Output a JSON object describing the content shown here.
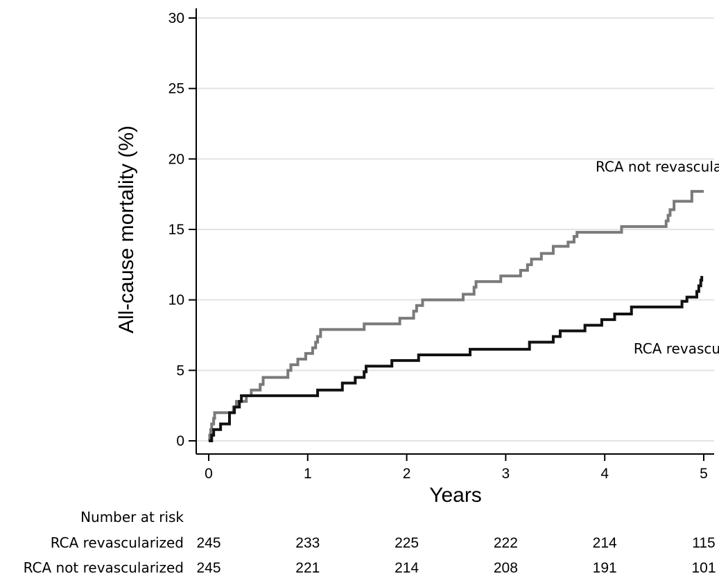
{
  "chart_data": {
    "type": "line",
    "title": "",
    "xlabel": "Years",
    "ylabel": "All-cause mortality (%)",
    "xlim": [
      0,
      5
    ],
    "ylim": [
      0,
      30
    ],
    "x_ticks": [
      "0",
      "1",
      "2",
      "3",
      "4",
      "5"
    ],
    "y_ticks": [
      "0",
      "5",
      "10",
      "15",
      "20",
      "25",
      "30"
    ],
    "grid": "horizontal",
    "step": true,
    "series": [
      {
        "name": "RCA not revascularized",
        "color": "#7a7a7a",
        "points": [
          [
            0,
            0
          ],
          [
            0.01,
            0.4
          ],
          [
            0.02,
            0.8
          ],
          [
            0.03,
            1.2
          ],
          [
            0.05,
            1.6
          ],
          [
            0.06,
            2.0
          ],
          [
            0.25,
            2.4
          ],
          [
            0.28,
            2.8
          ],
          [
            0.38,
            3.2
          ],
          [
            0.43,
            3.6
          ],
          [
            0.52,
            4.0
          ],
          [
            0.55,
            4.5
          ],
          [
            0.8,
            5.0
          ],
          [
            0.83,
            5.4
          ],
          [
            0.9,
            5.8
          ],
          [
            0.98,
            6.2
          ],
          [
            1.05,
            6.6
          ],
          [
            1.08,
            7.0
          ],
          [
            1.1,
            7.4
          ],
          [
            1.13,
            7.9
          ],
          [
            1.57,
            8.3
          ],
          [
            1.93,
            8.7
          ],
          [
            2.07,
            9.2
          ],
          [
            2.1,
            9.6
          ],
          [
            2.16,
            10.0
          ],
          [
            2.57,
            10.4
          ],
          [
            2.68,
            10.9
          ],
          [
            2.7,
            11.3
          ],
          [
            2.95,
            11.7
          ],
          [
            3.15,
            12.1
          ],
          [
            3.22,
            12.5
          ],
          [
            3.26,
            12.9
          ],
          [
            3.36,
            13.3
          ],
          [
            3.48,
            13.8
          ],
          [
            3.63,
            14.1
          ],
          [
            3.69,
            14.5
          ],
          [
            3.72,
            14.8
          ],
          [
            4.17,
            15.2
          ],
          [
            4.62,
            15.6
          ],
          [
            4.64,
            16.0
          ],
          [
            4.66,
            16.4
          ],
          [
            4.7,
            17.0
          ],
          [
            4.88,
            17.7
          ],
          [
            5.0,
            17.7
          ]
        ]
      },
      {
        "name": "RCA revascularized",
        "color": "#111111",
        "points": [
          [
            0,
            0
          ],
          [
            0.03,
            0.4
          ],
          [
            0.05,
            0.8
          ],
          [
            0.12,
            1.2
          ],
          [
            0.21,
            2.0
          ],
          [
            0.26,
            2.4
          ],
          [
            0.31,
            2.8
          ],
          [
            0.33,
            3.2
          ],
          [
            1.1,
            3.6
          ],
          [
            1.35,
            4.1
          ],
          [
            1.48,
            4.5
          ],
          [
            1.57,
            4.9
          ],
          [
            1.59,
            5.3
          ],
          [
            1.85,
            5.7
          ],
          [
            2.12,
            6.1
          ],
          [
            2.64,
            6.5
          ],
          [
            3.24,
            7.0
          ],
          [
            3.48,
            7.4
          ],
          [
            3.55,
            7.8
          ],
          [
            3.8,
            8.2
          ],
          [
            3.97,
            8.6
          ],
          [
            4.1,
            9.0
          ],
          [
            4.27,
            9.5
          ],
          [
            4.78,
            9.9
          ],
          [
            4.83,
            10.2
          ],
          [
            4.93,
            10.6
          ],
          [
            4.95,
            11.0
          ],
          [
            4.97,
            11.4
          ],
          [
            4.98,
            11.7
          ]
        ]
      }
    ],
    "annotations": [
      {
        "text": "RCA not revascularized",
        "x": 4.94,
        "y": 19.1
      },
      {
        "text": "RCA revascularized",
        "x": 5.05,
        "y": 6.2
      }
    ],
    "risk_table": {
      "header": "Number at risk",
      "times": [
        0,
        1,
        2,
        3,
        4,
        5
      ],
      "rows": [
        {
          "label": "RCA revascularized",
          "values": [
            "245",
            "233",
            "225",
            "222",
            "214",
            "115"
          ]
        },
        {
          "label": "RCA not revascularized",
          "values": [
            "245",
            "221",
            "214",
            "208",
            "191",
            "101"
          ]
        }
      ]
    }
  }
}
